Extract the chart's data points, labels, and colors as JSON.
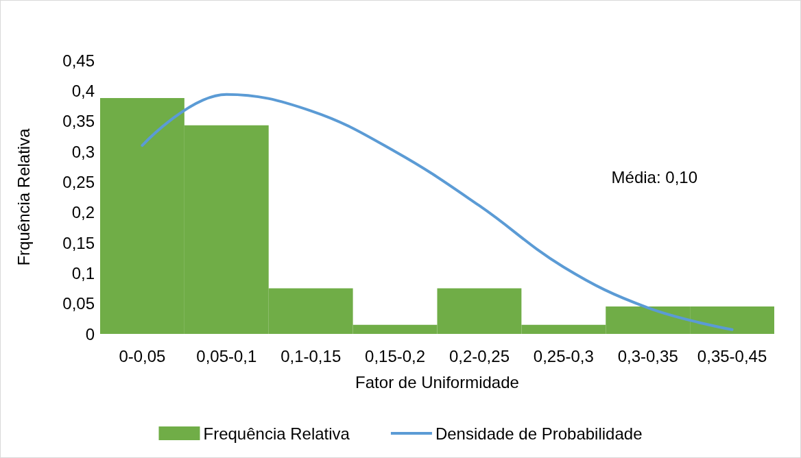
{
  "chart_data": {
    "type": "bar",
    "xlabel": "Fator de Uniformidade",
    "ylabel": "Frquência Relativa",
    "categories": [
      "0-0,05",
      "0,05-0,1",
      "0,1-0,15",
      "0,15-0,2",
      "0,2-0,25",
      "0,25-0,3",
      "0,3-0,35",
      "0,35-0,45"
    ],
    "series": [
      {
        "name": "Frequência Relativa",
        "color": "#70ad47",
        "values": [
          0.388,
          0.343,
          0.075,
          0.015,
          0.075,
          0.015,
          0.045,
          0.045
        ]
      },
      {
        "name": "Densidade de Probabilidade",
        "type": "line",
        "color": "#5b9bd5",
        "values": [
          0.31,
          0.394,
          0.367,
          0.3,
          0.211,
          0.11,
          0.043,
          0.007
        ]
      }
    ],
    "ylim": [
      0,
      0.45
    ],
    "yticks": [
      {
        "value": 0,
        "label": "0"
      },
      {
        "value": 0.05,
        "label": "0,05"
      },
      {
        "value": 0.1,
        "label": "0,1"
      },
      {
        "value": 0.15,
        "label": "0,15"
      },
      {
        "value": 0.2,
        "label": "0,2"
      },
      {
        "value": 0.25,
        "label": "0,25"
      },
      {
        "value": 0.3,
        "label": "0,3"
      },
      {
        "value": 0.35,
        "label": "0,35"
      },
      {
        "value": 0.4,
        "label": "0,4"
      },
      {
        "value": 0.45,
        "label": "0,45"
      }
    ],
    "annotations": [
      "Média: 0,10"
    ],
    "grid": false,
    "legend": "bottom",
    "marker": "none",
    "line_style": "solid"
  }
}
